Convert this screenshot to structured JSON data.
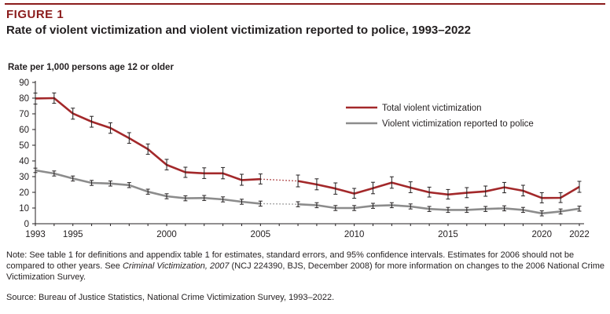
{
  "figure": {
    "label": "FIGURE 1",
    "title": "Rate of violent victimization and violent victimization reported to police, 1993–2022",
    "accent_color": "#8b1c1c"
  },
  "chart_data": {
    "type": "line",
    "ylabel": "Rate per 1,000 persons age 12 or older",
    "xlabel": "",
    "ylim": [
      0,
      90
    ],
    "yticks": [
      0,
      10,
      20,
      30,
      40,
      50,
      60,
      70,
      80,
      90
    ],
    "xticks": [
      1993,
      1995,
      2000,
      2005,
      2010,
      2015,
      2020,
      2022
    ],
    "xlim": [
      1993,
      2022
    ],
    "grid": false,
    "legend_position": "top-right",
    "series": [
      {
        "name": "Total violent victimization",
        "color": "#a3282a",
        "points": [
          {
            "x": 1993,
            "y": 79.8,
            "lo": 76.2,
            "hi": 83.2
          },
          {
            "x": 1994,
            "y": 80.0,
            "lo": 76.7,
            "hi": 83.3
          },
          {
            "x": 1995,
            "y": 70.2,
            "lo": 66.6,
            "hi": 73.6
          },
          {
            "x": 1996,
            "y": 65.0,
            "lo": 61.5,
            "hi": 68.4
          },
          {
            "x": 1997,
            "y": 61.0,
            "lo": 57.6,
            "hi": 64.3
          },
          {
            "x": 1998,
            "y": 54.5,
            "lo": 51.2,
            "hi": 58.0
          },
          {
            "x": 1999,
            "y": 47.5,
            "lo": 44.2,
            "hi": 50.8
          },
          {
            "x": 2000,
            "y": 37.5,
            "lo": 34.3,
            "hi": 41.0
          },
          {
            "x": 2001,
            "y": 32.8,
            "lo": 29.5,
            "hi": 36.0
          },
          {
            "x": 2002,
            "y": 32.1,
            "lo": 28.8,
            "hi": 35.6
          },
          {
            "x": 2003,
            "y": 32.1,
            "lo": 28.6,
            "hi": 35.8
          },
          {
            "x": 2004,
            "y": 27.8,
            "lo": 24.5,
            "hi": 31.5
          },
          {
            "x": 2005,
            "y": 28.4,
            "lo": 25.3,
            "hi": 31.7
          },
          {
            "x": 2007,
            "y": 27.2,
            "lo": 23.5,
            "hi": 31.0
          },
          {
            "x": 2008,
            "y": 25.0,
            "lo": 21.6,
            "hi": 28.6
          },
          {
            "x": 2009,
            "y": 22.4,
            "lo": 18.8,
            "hi": 26.0
          },
          {
            "x": 2010,
            "y": 19.2,
            "lo": 16.2,
            "hi": 22.5
          },
          {
            "x": 2011,
            "y": 22.6,
            "lo": 19.1,
            "hi": 26.4
          },
          {
            "x": 2012,
            "y": 26.2,
            "lo": 22.6,
            "hi": 29.9
          },
          {
            "x": 2013,
            "y": 23.0,
            "lo": 19.8,
            "hi": 26.7
          },
          {
            "x": 2014,
            "y": 20.0,
            "lo": 17.0,
            "hi": 23.3
          },
          {
            "x": 2015,
            "y": 18.6,
            "lo": 15.7,
            "hi": 21.8
          },
          {
            "x": 2016,
            "y": 19.7,
            "lo": 16.6,
            "hi": 23.0
          },
          {
            "x": 2017,
            "y": 20.6,
            "lo": 17.5,
            "hi": 24.0
          },
          {
            "x": 2018,
            "y": 23.2,
            "lo": 19.7,
            "hi": 26.3
          },
          {
            "x": 2019,
            "y": 21.0,
            "lo": 17.7,
            "hi": 24.5
          },
          {
            "x": 2020,
            "y": 16.4,
            "lo": 13.3,
            "hi": 19.8
          },
          {
            "x": 2021,
            "y": 16.5,
            "lo": 13.5,
            "hi": 19.8
          },
          {
            "x": 2022,
            "y": 23.5,
            "lo": 20.0,
            "hi": 27.0
          }
        ]
      },
      {
        "name": "Violent victimization reported to police",
        "color": "#8c8c8c",
        "points": [
          {
            "x": 1993,
            "y": 34.0,
            "lo": 32.6,
            "hi": 35.4
          },
          {
            "x": 1994,
            "y": 32.0,
            "lo": 30.4,
            "hi": 33.6
          },
          {
            "x": 1995,
            "y": 28.8,
            "lo": 27.2,
            "hi": 30.4
          },
          {
            "x": 1996,
            "y": 26.0,
            "lo": 24.4,
            "hi": 27.6
          },
          {
            "x": 1997,
            "y": 25.6,
            "lo": 24.0,
            "hi": 27.2
          },
          {
            "x": 1998,
            "y": 24.6,
            "lo": 23.0,
            "hi": 26.2
          },
          {
            "x": 1999,
            "y": 20.4,
            "lo": 18.8,
            "hi": 22.0
          },
          {
            "x": 2000,
            "y": 17.5,
            "lo": 15.9,
            "hi": 19.1
          },
          {
            "x": 2001,
            "y": 16.2,
            "lo": 14.6,
            "hi": 17.8
          },
          {
            "x": 2002,
            "y": 16.4,
            "lo": 14.8,
            "hi": 18.0
          },
          {
            "x": 2003,
            "y": 15.5,
            "lo": 13.9,
            "hi": 17.1
          },
          {
            "x": 2004,
            "y": 14.0,
            "lo": 12.4,
            "hi": 15.6
          },
          {
            "x": 2005,
            "y": 12.8,
            "lo": 11.2,
            "hi": 14.4
          },
          {
            "x": 2007,
            "y": 12.4,
            "lo": 10.8,
            "hi": 14.0
          },
          {
            "x": 2008,
            "y": 11.8,
            "lo": 10.2,
            "hi": 13.4
          },
          {
            "x": 2009,
            "y": 10.0,
            "lo": 8.4,
            "hi": 11.6
          },
          {
            "x": 2010,
            "y": 10.0,
            "lo": 8.4,
            "hi": 11.6
          },
          {
            "x": 2011,
            "y": 11.4,
            "lo": 9.8,
            "hi": 13.0
          },
          {
            "x": 2012,
            "y": 11.8,
            "lo": 10.2,
            "hi": 13.4
          },
          {
            "x": 2013,
            "y": 11.0,
            "lo": 9.4,
            "hi": 12.6
          },
          {
            "x": 2014,
            "y": 9.4,
            "lo": 7.8,
            "hi": 11.0
          },
          {
            "x": 2015,
            "y": 8.8,
            "lo": 7.2,
            "hi": 10.4
          },
          {
            "x": 2016,
            "y": 8.8,
            "lo": 7.2,
            "hi": 10.4
          },
          {
            "x": 2017,
            "y": 9.4,
            "lo": 7.8,
            "hi": 11.0
          },
          {
            "x": 2018,
            "y": 9.8,
            "lo": 8.2,
            "hi": 11.4
          },
          {
            "x": 2019,
            "y": 8.8,
            "lo": 7.2,
            "hi": 10.4
          },
          {
            "x": 2020,
            "y": 6.6,
            "lo": 5.0,
            "hi": 8.2
          },
          {
            "x": 2021,
            "y": 7.8,
            "lo": 6.2,
            "hi": 9.4
          },
          {
            "x": 2022,
            "y": 9.6,
            "lo": 8.0,
            "hi": 11.2
          }
        ]
      }
    ],
    "gap": {
      "from": 2005,
      "to": 2007,
      "style": "dotted"
    }
  },
  "footer": {
    "note_prefix": "Note: See table 1 for definitions and appendix table 1 for estimates, standard errors, and 95% confidence intervals. Estimates for 2006 should not be compared to other years. See ",
    "note_italic": "Criminal Victimization, 2007",
    "note_suffix": " (NCJ 224390, BJS, December 2008) for more information on changes to the 2006 National Crime Victimization Survey.",
    "source": "Source: Bureau of Justice Statistics, National Crime Victimization Survey, 1993–2022."
  }
}
